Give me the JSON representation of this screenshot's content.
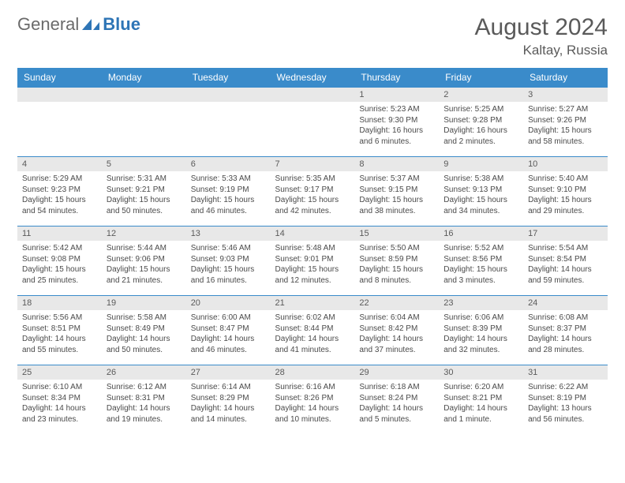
{
  "logo": {
    "word1": "General",
    "word2": "Blue",
    "icon_color": "#2e75b6"
  },
  "title": "August 2024",
  "location": "Kaltay, Russia",
  "colors": {
    "header_bg": "#3a8bca",
    "header_text": "#ffffff",
    "daynum_bg": "#e8e8e8",
    "daynum_text": "#5a5a5a",
    "body_text": "#4a4a4a",
    "row_border": "#3a8bca",
    "logo_gray": "#6a6a6a",
    "logo_blue": "#2e75b6",
    "title_color": "#5a5a5a"
  },
  "typography": {
    "title_fontsize": 30,
    "location_fontsize": 17,
    "header_fontsize": 12,
    "daynum_fontsize": 11,
    "cell_fontsize": 10
  },
  "weekdays": [
    "Sunday",
    "Monday",
    "Tuesday",
    "Wednesday",
    "Thursday",
    "Friday",
    "Saturday"
  ],
  "weeks": [
    [
      null,
      null,
      null,
      null,
      {
        "d": "1",
        "sr": "5:23 AM",
        "ss": "9:30 PM",
        "dl": "16 hours and 6 minutes."
      },
      {
        "d": "2",
        "sr": "5:25 AM",
        "ss": "9:28 PM",
        "dl": "16 hours and 2 minutes."
      },
      {
        "d": "3",
        "sr": "5:27 AM",
        "ss": "9:26 PM",
        "dl": "15 hours and 58 minutes."
      }
    ],
    [
      {
        "d": "4",
        "sr": "5:29 AM",
        "ss": "9:23 PM",
        "dl": "15 hours and 54 minutes."
      },
      {
        "d": "5",
        "sr": "5:31 AM",
        "ss": "9:21 PM",
        "dl": "15 hours and 50 minutes."
      },
      {
        "d": "6",
        "sr": "5:33 AM",
        "ss": "9:19 PM",
        "dl": "15 hours and 46 minutes."
      },
      {
        "d": "7",
        "sr": "5:35 AM",
        "ss": "9:17 PM",
        "dl": "15 hours and 42 minutes."
      },
      {
        "d": "8",
        "sr": "5:37 AM",
        "ss": "9:15 PM",
        "dl": "15 hours and 38 minutes."
      },
      {
        "d": "9",
        "sr": "5:38 AM",
        "ss": "9:13 PM",
        "dl": "15 hours and 34 minutes."
      },
      {
        "d": "10",
        "sr": "5:40 AM",
        "ss": "9:10 PM",
        "dl": "15 hours and 29 minutes."
      }
    ],
    [
      {
        "d": "11",
        "sr": "5:42 AM",
        "ss": "9:08 PM",
        "dl": "15 hours and 25 minutes."
      },
      {
        "d": "12",
        "sr": "5:44 AM",
        "ss": "9:06 PM",
        "dl": "15 hours and 21 minutes."
      },
      {
        "d": "13",
        "sr": "5:46 AM",
        "ss": "9:03 PM",
        "dl": "15 hours and 16 minutes."
      },
      {
        "d": "14",
        "sr": "5:48 AM",
        "ss": "9:01 PM",
        "dl": "15 hours and 12 minutes."
      },
      {
        "d": "15",
        "sr": "5:50 AM",
        "ss": "8:59 PM",
        "dl": "15 hours and 8 minutes."
      },
      {
        "d": "16",
        "sr": "5:52 AM",
        "ss": "8:56 PM",
        "dl": "15 hours and 3 minutes."
      },
      {
        "d": "17",
        "sr": "5:54 AM",
        "ss": "8:54 PM",
        "dl": "14 hours and 59 minutes."
      }
    ],
    [
      {
        "d": "18",
        "sr": "5:56 AM",
        "ss": "8:51 PM",
        "dl": "14 hours and 55 minutes."
      },
      {
        "d": "19",
        "sr": "5:58 AM",
        "ss": "8:49 PM",
        "dl": "14 hours and 50 minutes."
      },
      {
        "d": "20",
        "sr": "6:00 AM",
        "ss": "8:47 PM",
        "dl": "14 hours and 46 minutes."
      },
      {
        "d": "21",
        "sr": "6:02 AM",
        "ss": "8:44 PM",
        "dl": "14 hours and 41 minutes."
      },
      {
        "d": "22",
        "sr": "6:04 AM",
        "ss": "8:42 PM",
        "dl": "14 hours and 37 minutes."
      },
      {
        "d": "23",
        "sr": "6:06 AM",
        "ss": "8:39 PM",
        "dl": "14 hours and 32 minutes."
      },
      {
        "d": "24",
        "sr": "6:08 AM",
        "ss": "8:37 PM",
        "dl": "14 hours and 28 minutes."
      }
    ],
    [
      {
        "d": "25",
        "sr": "6:10 AM",
        "ss": "8:34 PM",
        "dl": "14 hours and 23 minutes."
      },
      {
        "d": "26",
        "sr": "6:12 AM",
        "ss": "8:31 PM",
        "dl": "14 hours and 19 minutes."
      },
      {
        "d": "27",
        "sr": "6:14 AM",
        "ss": "8:29 PM",
        "dl": "14 hours and 14 minutes."
      },
      {
        "d": "28",
        "sr": "6:16 AM",
        "ss": "8:26 PM",
        "dl": "14 hours and 10 minutes."
      },
      {
        "d": "29",
        "sr": "6:18 AM",
        "ss": "8:24 PM",
        "dl": "14 hours and 5 minutes."
      },
      {
        "d": "30",
        "sr": "6:20 AM",
        "ss": "8:21 PM",
        "dl": "14 hours and 1 minute."
      },
      {
        "d": "31",
        "sr": "6:22 AM",
        "ss": "8:19 PM",
        "dl": "13 hours and 56 minutes."
      }
    ]
  ],
  "labels": {
    "sunrise": "Sunrise:",
    "sunset": "Sunset:",
    "daylight": "Daylight:"
  }
}
